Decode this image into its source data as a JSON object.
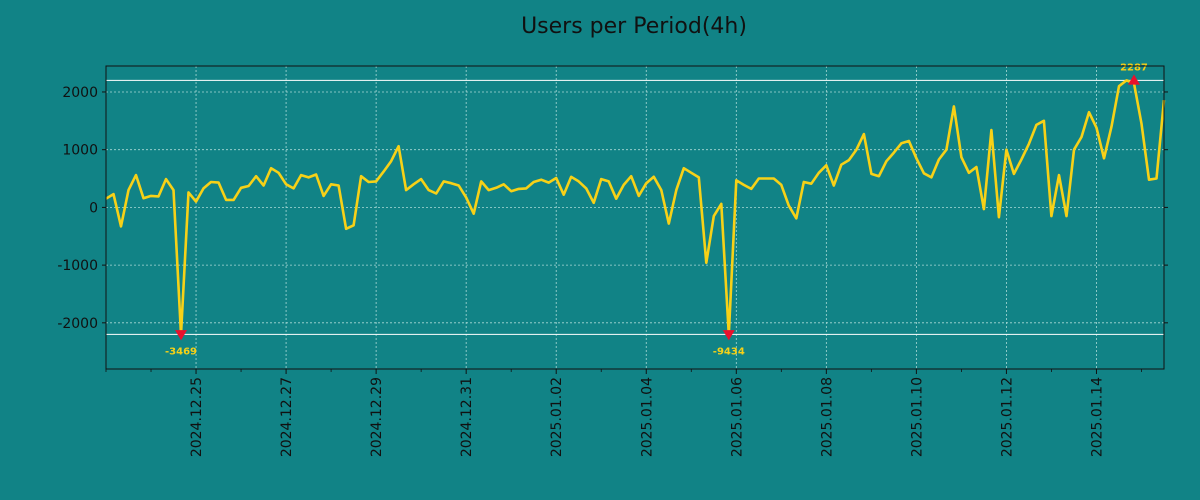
{
  "chart_data": {
    "type": "line",
    "title": "Users per Period(4h)",
    "xlabel": "",
    "ylabel": "",
    "x_start": "2024-12-23T00:00",
    "x_step_hours": 4,
    "xlim_days": [
      0.0,
      23.5
    ],
    "ylim": [
      -2800,
      2450
    ],
    "y_ticks": [
      -2000,
      -1000,
      0,
      1000,
      2000
    ],
    "y_tick_labels": [
      "-2000",
      "-1000",
      "0",
      "1000",
      "2000"
    ],
    "x_ticks_days": [
      2,
      4,
      6,
      8,
      10,
      12,
      14,
      16,
      18,
      20,
      22
    ],
    "x_tick_labels": [
      "2024.12.25",
      "2024.12.27",
      "2024.12.29",
      "2024.12.31",
      "2025.01.02",
      "2025.01.04",
      "2025.01.06",
      "2025.01.08",
      "2025.01.10",
      "2025.01.12",
      "2025.01.14"
    ],
    "hlines": [
      2200,
      -2200
    ],
    "grid": true,
    "colors": {
      "background": "#118386",
      "line": "#f7d117",
      "marker": "#e8112d",
      "grid": "#a9d9d6",
      "hline": "#ffffff",
      "axis": "#111111"
    },
    "series": [
      {
        "name": "Users",
        "values": [
          150,
          230,
          -330,
          300,
          560,
          160,
          200,
          190,
          490,
          300,
          -2200,
          260,
          100,
          330,
          440,
          430,
          130,
          130,
          340,
          370,
          540,
          380,
          680,
          600,
          400,
          330,
          560,
          520,
          570,
          200,
          400,
          380,
          -370,
          -310,
          540,
          440,
          450,
          620,
          800,
          1060,
          300,
          400,
          490,
          300,
          240,
          450,
          420,
          380,
          170,
          -110,
          450,
          300,
          340,
          400,
          280,
          320,
          330,
          440,
          480,
          430,
          510,
          220,
          530,
          450,
          330,
          80,
          490,
          450,
          150,
          390,
          540,
          200,
          420,
          530,
          300,
          -280,
          300,
          680,
          600,
          520,
          -960,
          -150,
          60,
          -2200,
          470,
          390,
          320,
          500,
          500,
          500,
          390,
          30,
          -190,
          440,
          410,
          600,
          730,
          380,
          740,
          820,
          1000,
          1270,
          580,
          540,
          800,
          950,
          1110,
          1150,
          850,
          590,
          520,
          830,
          1000,
          1750,
          870,
          600,
          700,
          -30,
          1340,
          -170,
          1000,
          580,
          830,
          1100,
          1430,
          1500,
          -150,
          560,
          -150,
          1000,
          1220,
          1650,
          1380,
          850,
          1400,
          2100,
          2200,
          2150,
          1450,
          480,
          500,
          1860
        ]
      }
    ],
    "annotations": [
      {
        "label": "-3469",
        "index": 10,
        "value": -2200,
        "marker": "down-triangle"
      },
      {
        "label": "-9434",
        "index": 83,
        "value": -2200,
        "marker": "down-triangle"
      },
      {
        "label": "2287",
        "index": 137,
        "value": 2200,
        "marker": "up-triangle"
      }
    ]
  }
}
